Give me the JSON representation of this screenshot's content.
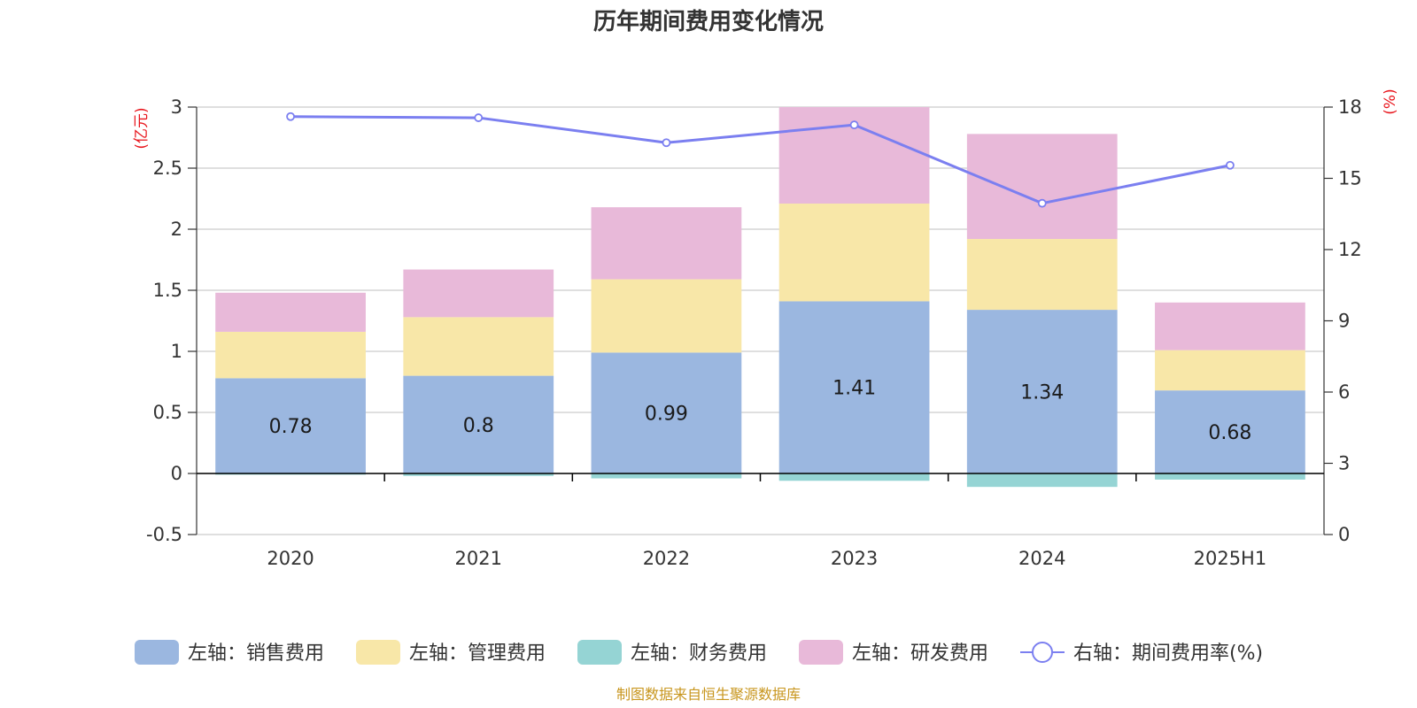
{
  "chart_data": {
    "type": "bar",
    "title": "历年期间费用变化情况",
    "categories": [
      "2020",
      "2021",
      "2022",
      "2023",
      "2024",
      "2025H1"
    ],
    "left_axis": {
      "unit": "(亿元)",
      "range": [
        -0.5,
        3
      ],
      "ticks": [
        "-0.5",
        "0",
        "0.5",
        "1",
        "1.5",
        "2",
        "2.5",
        "3"
      ]
    },
    "right_axis": {
      "unit": "(%)",
      "range": [
        0,
        18
      ],
      "ticks": [
        "0",
        "3",
        "6",
        "9",
        "12",
        "15",
        "18"
      ]
    },
    "grid": true,
    "legend_position": "bottom",
    "series": [
      {
        "name": "左轴：销售费用",
        "kind": "bar",
        "axis": "left",
        "color": "#9bb7e0",
        "values": [
          0.78,
          0.8,
          0.99,
          1.41,
          1.34,
          0.68
        ],
        "labels": [
          "0.78",
          "0.8",
          "0.99",
          "1.41",
          "1.34",
          "0.68"
        ]
      },
      {
        "name": "左轴：管理费用",
        "kind": "bar",
        "axis": "left",
        "color": "#f8e7a8",
        "values": [
          0.38,
          0.48,
          0.6,
          0.8,
          0.58,
          0.33
        ]
      },
      {
        "name": "左轴：财务费用",
        "kind": "bar",
        "axis": "left",
        "color": "#95d4d4",
        "values": [
          -0.01,
          -0.02,
          -0.04,
          -0.06,
          -0.11,
          -0.05
        ]
      },
      {
        "name": "左轴：研发费用",
        "kind": "bar",
        "axis": "left",
        "color": "#e8b9d9",
        "values": [
          0.32,
          0.39,
          0.59,
          0.79,
          0.86,
          0.39
        ]
      },
      {
        "name": "右轴：期间费用率(%)",
        "kind": "line",
        "axis": "right",
        "color": "#7b7ff0",
        "values": [
          17.6,
          17.55,
          16.5,
          17.25,
          13.95,
          15.55
        ]
      }
    ],
    "source": "制图数据来自恒生聚源数据库"
  }
}
